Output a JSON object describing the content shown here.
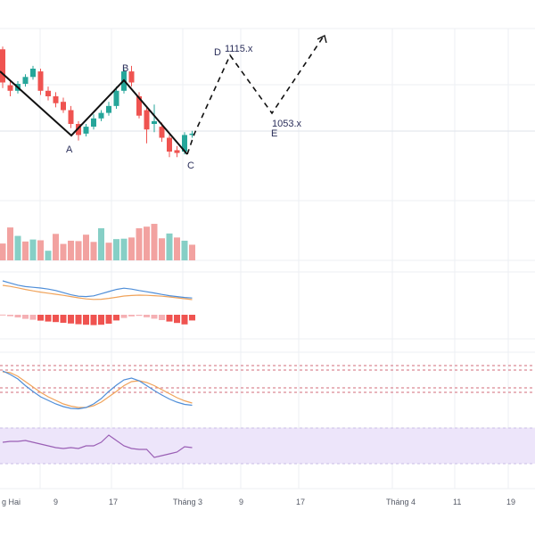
{
  "chart_data": {
    "type": "candlestick",
    "colors": {
      "up": "#26a69a",
      "down": "#ef5350",
      "wave": "#111111",
      "grid": "#eceff3",
      "macd_line": "#4f8ed8",
      "signal_line": "#f0a35a",
      "stoch_k": "#4f8ed8",
      "stoch_d": "#f0a35a",
      "stoch_band": "#d26b7a",
      "rsi_line": "#9a5fb5",
      "rsi_band": "#ede5fa",
      "label": "#2a2e5a"
    },
    "x_axis": {
      "tick_labels": [
        "g Hai",
        "9",
        "17",
        "Tháng 3",
        "9",
        "17",
        "Tháng 4",
        "11",
        "19"
      ]
    },
    "wave_points": [
      {
        "label": "A"
      },
      {
        "label": "B"
      },
      {
        "label": "C"
      },
      {
        "label": "D",
        "value": "1115.x"
      },
      {
        "label": "E",
        "value": "1053.x"
      }
    ],
    "candles": [
      {
        "o": 1124,
        "c": 1100,
        "h": 1126,
        "l": 1096
      },
      {
        "o": 1098,
        "c": 1094,
        "h": 1102,
        "l": 1090
      },
      {
        "o": 1094,
        "c": 1099,
        "h": 1101,
        "l": 1092
      },
      {
        "o": 1099,
        "c": 1104,
        "h": 1106,
        "l": 1097
      },
      {
        "o": 1104,
        "c": 1110,
        "h": 1112,
        "l": 1102
      },
      {
        "o": 1108,
        "c": 1094,
        "h": 1110,
        "l": 1091
      },
      {
        "o": 1094,
        "c": 1090,
        "h": 1097,
        "l": 1087
      },
      {
        "o": 1090,
        "c": 1085,
        "h": 1093,
        "l": 1082
      },
      {
        "o": 1086,
        "c": 1080,
        "h": 1089,
        "l": 1078
      },
      {
        "o": 1080,
        "c": 1070,
        "h": 1083,
        "l": 1067
      },
      {
        "o": 1070,
        "c": 1062,
        "h": 1072,
        "l": 1058
      },
      {
        "o": 1063,
        "c": 1068,
        "h": 1070,
        "l": 1061
      },
      {
        "o": 1068,
        "c": 1074,
        "h": 1077,
        "l": 1066
      },
      {
        "o": 1074,
        "c": 1078,
        "h": 1080,
        "l": 1072
      },
      {
        "o": 1078,
        "c": 1083,
        "h": 1086,
        "l": 1076
      },
      {
        "o": 1083,
        "c": 1094,
        "h": 1097,
        "l": 1081
      },
      {
        "o": 1094,
        "c": 1108,
        "h": 1110,
        "l": 1092
      },
      {
        "o": 1108,
        "c": 1100,
        "h": 1112,
        "l": 1097
      },
      {
        "o": 1090,
        "c": 1076,
        "h": 1093,
        "l": 1074
      },
      {
        "o": 1080,
        "c": 1066,
        "h": 1082,
        "l": 1056
      },
      {
        "o": 1070,
        "c": 1072,
        "h": 1084,
        "l": 1064
      },
      {
        "o": 1068,
        "c": 1060,
        "h": 1071,
        "l": 1057
      },
      {
        "o": 1060,
        "c": 1050,
        "h": 1062,
        "l": 1046
      },
      {
        "o": 1051,
        "c": 1049,
        "h": 1054,
        "l": 1046
      },
      {
        "o": 1050,
        "c": 1062,
        "h": 1064,
        "l": 1048
      },
      {
        "o": 1062,
        "c": 1063,
        "h": 1065,
        "l": 1060
      }
    ],
    "volume": [
      0.42,
      0.82,
      0.61,
      0.47,
      0.52,
      0.5,
      0.24,
      0.66,
      0.41,
      0.49,
      0.48,
      0.64,
      0.46,
      0.8,
      0.44,
      0.53,
      0.54,
      0.57,
      0.8,
      0.84,
      0.91,
      0.55,
      0.67,
      0.57,
      0.49,
      0.39
    ],
    "volume_up": [
      false,
      false,
      true,
      false,
      true,
      false,
      true,
      false,
      false,
      false,
      false,
      false,
      false,
      true,
      false,
      true,
      true,
      false,
      false,
      false,
      false,
      false,
      true,
      false,
      true,
      false
    ],
    "macd": {
      "macd_line": [
        -1.0,
        -2.2,
        -3.4,
        -4.2,
        -4.6,
        -5.0,
        -5.6,
        -6.4,
        -7.6,
        -8.8,
        -9.6,
        -9.8,
        -9.4,
        -8.2,
        -7.0,
        -5.8,
        -5.1,
        -5.6,
        -6.4,
        -7.1,
        -7.8,
        -8.6,
        -9.3,
        -9.8,
        -10.3,
        -10.6
      ],
      "signal_line": [
        0.0,
        -0.6,
        -1.4,
        -2.3,
        -3.1,
        -3.8,
        -4.4,
        -5.0,
        -5.6,
        -6.3,
        -7.0,
        -7.6,
        -7.9,
        -7.8,
        -7.3,
        -6.7,
        -6.0,
        -5.7,
        -5.5,
        -5.6,
        -5.8,
        -6.1,
        -6.5,
        -7.0,
        -7.5,
        -8.0
      ],
      "histogram": [
        0.1,
        -0.8,
        -1.5,
        -2.3,
        -2.8,
        -3.3,
        -3.8,
        -4.1,
        -4.5,
        -4.9,
        -5.3,
        -5.6,
        -5.8,
        -5.6,
        -5.0,
        -3.2,
        -1.8,
        -0.9,
        -0.6,
        -1.4,
        -2.2,
        -3.0,
        -3.8,
        -4.6,
        -5.4,
        -3.2
      ]
    },
    "stochastic": {
      "levels": [
        80,
        70,
        30,
        20
      ],
      "k": [
        88,
        80,
        70,
        55,
        42,
        30,
        22,
        14,
        8,
        4,
        3,
        6,
        14,
        26,
        42,
        56,
        68,
        72,
        66,
        55,
        44,
        34,
        25,
        18,
        13,
        11
      ],
      "d": [
        86,
        84,
        76,
        64,
        52,
        40,
        30,
        22,
        14,
        9,
        6,
        6,
        10,
        18,
        30,
        42,
        55,
        64,
        66,
        62,
        55,
        46,
        37,
        28,
        21,
        16
      ]
    },
    "rsi": {
      "levels": [
        70,
        30
      ],
      "values": [
        54,
        55,
        55,
        56,
        54,
        52,
        50,
        48,
        47,
        48,
        47,
        50,
        50,
        54,
        62,
        56,
        50,
        47,
        46,
        46,
        37,
        39,
        41,
        43,
        49,
        48
      ]
    }
  }
}
